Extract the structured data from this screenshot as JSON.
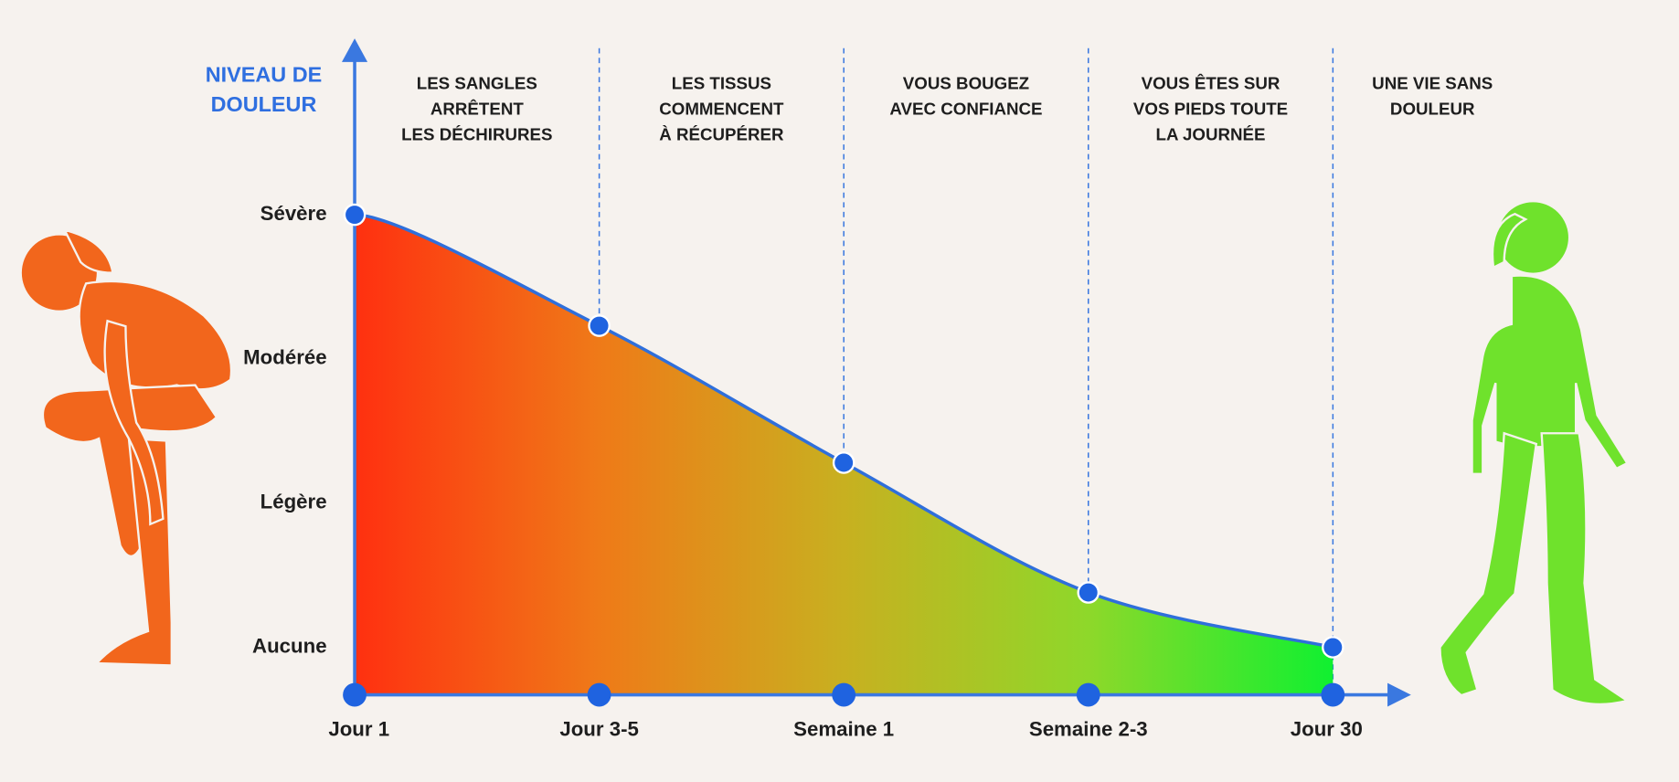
{
  "chart_data": {
    "type": "area",
    "ylabel": [
      "NIVEAU DE",
      "DOULEUR"
    ],
    "categories": [
      "Jour 1",
      "Jour 3-5",
      "Semaine 1",
      "Semaine 2-3",
      "Jour 30"
    ],
    "values": [
      3,
      2.23,
      1.28,
      0.38,
      0
    ],
    "color": "#2f6fdb",
    "gradient": [
      "#ff3010",
      "#ef7a18",
      "#c8b020",
      "#8ed82a",
      "#10f030"
    ],
    "ylim": [
      -0.33,
      4.2
    ],
    "yticks": [
      {
        "value": 3,
        "label": "Sévère"
      },
      {
        "value": 2,
        "label": "Modérée"
      },
      {
        "value": 1,
        "label": "Légère"
      },
      {
        "value": 0,
        "label": "Aucune"
      }
    ],
    "phases": [
      [
        "LES SANGLES",
        "ARRÊTENT",
        "LES DÉCHIRURES"
      ],
      [
        "LES TISSUS",
        "COMMENCENT",
        "À RÉCUPÉRER"
      ],
      [
        "VOUS BOUGEZ",
        "AVEC CONFIANCE"
      ],
      [
        "VOUS ÊTES SUR",
        "VOS PIEDS TOUTE",
        "LA JOURNÉE"
      ],
      [
        "UNE VIE SANS",
        "DOULEUR"
      ]
    ]
  }
}
